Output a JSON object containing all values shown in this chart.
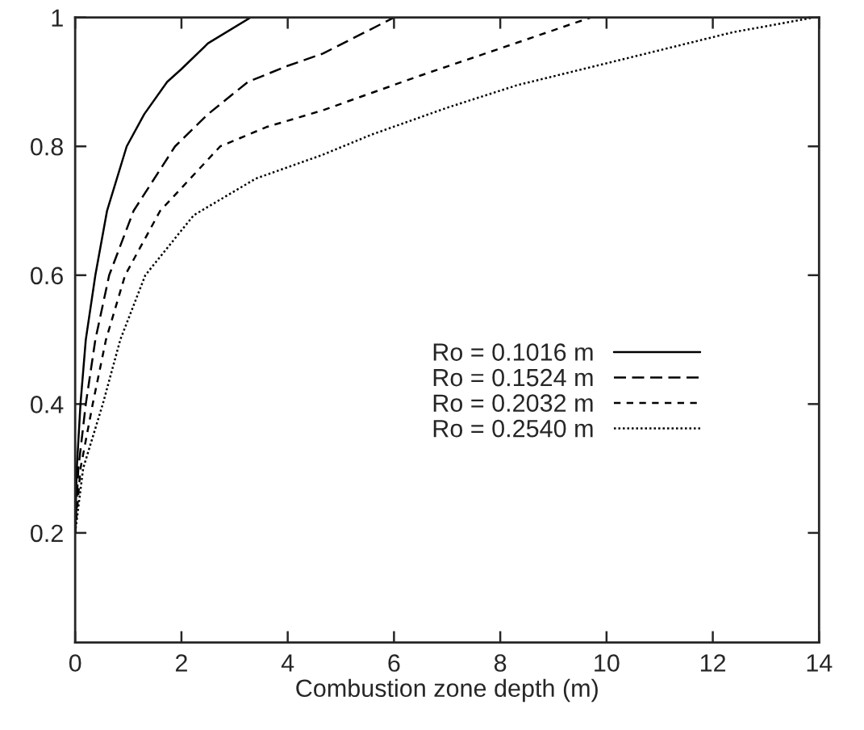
{
  "chart_data": {
    "type": "line",
    "xlabel": "Combustion zone depth (m)",
    "xlim": [
      0,
      14
    ],
    "xticks": [
      0,
      2,
      4,
      6,
      8,
      10,
      12,
      14
    ],
    "ylim": [
      0.03,
      1
    ],
    "yticks": [
      0.2,
      0.4,
      0.6,
      0.8,
      1
    ],
    "grid": false,
    "legend": "right",
    "marker": "none",
    "series": [
      {
        "name": "Ro = 0.1016 m",
        "color": "#000000",
        "line_style": "solid",
        "x": [
          0,
          0.03,
          0.1,
          0.2,
          0.38,
          0.6,
          0.97,
          1.3,
          1.73,
          2.0,
          2.5,
          3.3
        ],
        "values": [
          0.2,
          0.3,
          0.4,
          0.5,
          0.6,
          0.7,
          0.8,
          0.85,
          0.9,
          0.92,
          0.96,
          1.0
        ]
      },
      {
        "name": "Ro = 0.1524 m",
        "color": "#000000",
        "line_style": "dashed",
        "x": [
          0,
          0.06,
          0.2,
          0.38,
          0.64,
          1.1,
          1.88,
          2.5,
          3.25,
          4.0,
          4.66,
          6.0
        ],
        "values": [
          0.2,
          0.3,
          0.4,
          0.5,
          0.6,
          0.7,
          0.8,
          0.85,
          0.9,
          0.925,
          0.944,
          1.0
        ]
      },
      {
        "name": "Ro = 0.2032 m",
        "color": "#000000",
        "line_style": "dashed",
        "x": [
          0,
          0.1,
          0.33,
          0.58,
          0.94,
          1.6,
          2.73,
          3.6,
          4.66,
          6.5,
          8.32,
          9.7
        ],
        "values": [
          0.2,
          0.3,
          0.4,
          0.5,
          0.6,
          0.7,
          0.8,
          0.83,
          0.856,
          0.91,
          0.961,
          1.0
        ]
      },
      {
        "name": "Ro = 0.2540 m",
        "color": "#000000",
        "line_style": "dotted",
        "x": [
          0,
          0.15,
          0.52,
          0.85,
          1.32,
          2.23,
          3.4,
          4.66,
          5.57,
          7.0,
          8.32,
          10.3,
          12.37,
          13.9
        ],
        "values": [
          0.2,
          0.3,
          0.4,
          0.5,
          0.6,
          0.693,
          0.75,
          0.787,
          0.818,
          0.86,
          0.895,
          0.935,
          0.977,
          1.0
        ]
      }
    ]
  }
}
